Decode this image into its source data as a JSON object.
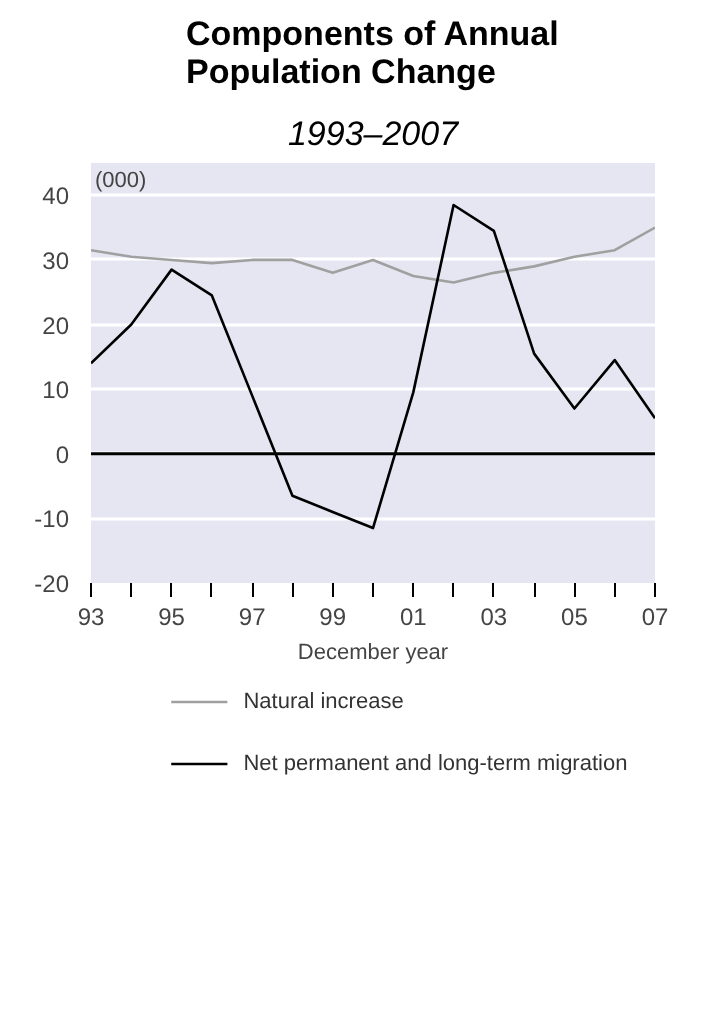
{
  "chart_data": {
    "type": "line",
    "title": "Components of Annual Population Change",
    "subtitle": "1993–2007",
    "xlabel": "December year",
    "ylabel": "(000)",
    "x": [
      1993,
      1994,
      1995,
      1996,
      1997,
      1998,
      1999,
      2000,
      2001,
      2002,
      2003,
      2004,
      2005,
      2006,
      2007
    ],
    "series": [
      {
        "name": "Natural increase",
        "color": "#a0a0a0",
        "values": [
          31.5,
          30.5,
          30,
          29.5,
          30,
          30,
          28,
          30,
          27.5,
          26.5,
          28,
          29,
          30.5,
          31.5,
          35
        ]
      },
      {
        "name": "Net permanent and long-term migration",
        "color": "#000000",
        "values": [
          14,
          20,
          28.5,
          24.5,
          9,
          -6.5,
          -9,
          -11.5,
          9.5,
          38.5,
          34.5,
          15.5,
          7,
          14.5,
          5.5
        ]
      }
    ],
    "xlim": [
      1993,
      2007
    ],
    "xticks": [
      {
        "value": 1993,
        "label": "93"
      },
      {
        "value": 1994,
        "label": null
      },
      {
        "value": 1995,
        "label": "95"
      },
      {
        "value": 1996,
        "label": null
      },
      {
        "value": 1997,
        "label": "97"
      },
      {
        "value": 1998,
        "label": null
      },
      {
        "value": 1999,
        "label": "99"
      },
      {
        "value": 2000,
        "label": null
      },
      {
        "value": 2001,
        "label": "01"
      },
      {
        "value": 2002,
        "label": null
      },
      {
        "value": 2003,
        "label": "03"
      },
      {
        "value": 2004,
        "label": null
      },
      {
        "value": 2005,
        "label": "05"
      },
      {
        "value": 2006,
        "label": null
      },
      {
        "value": 2007,
        "label": "07"
      }
    ],
    "ylim": [
      -20,
      45
    ],
    "yticks": [
      -20,
      -10,
      0,
      10,
      20,
      30,
      40
    ],
    "ref_lines": [
      {
        "axis": "y",
        "value": 0,
        "color": "#000000"
      }
    ],
    "grid": "y",
    "legend": "bottom",
    "line_style": "solid",
    "marker": "none"
  }
}
